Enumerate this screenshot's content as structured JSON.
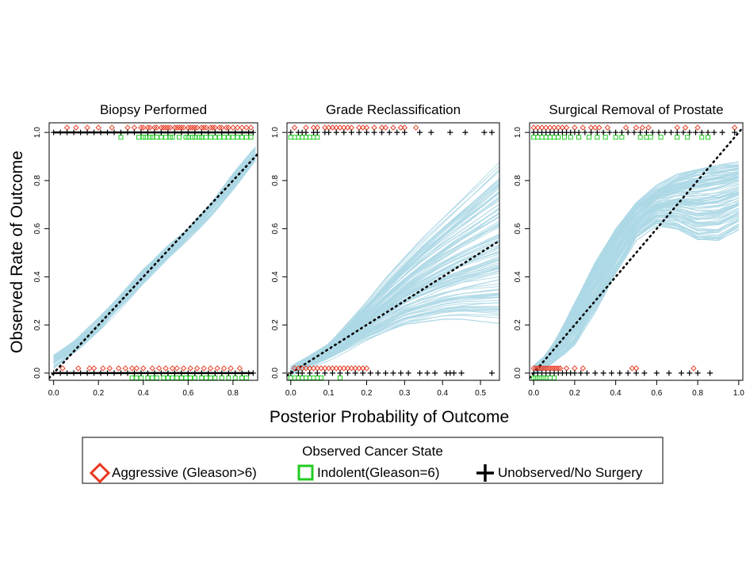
{
  "chart_data": {
    "type": "scatter",
    "figure": {
      "ylabel": "Observed Rate of Outcome",
      "xlabel": "Posterior Probability of Outcome"
    },
    "legend": {
      "title": "Observed Cancer State",
      "placement": "bottom",
      "entries": [
        {
          "name": "Aggressive (Gleason>6)",
          "marker": "diamond",
          "color": "#e8371e"
        },
        {
          "name": "Indolent(Gleason=6)",
          "marker": "square",
          "color": "#22cc22"
        },
        {
          "name": "Unobserved/No Surgery",
          "marker": "plus",
          "color": "#000000"
        }
      ]
    },
    "colors": {
      "band": "#add8e6",
      "aggressive": "#e8371e",
      "indolent": "#22cc22",
      "unobserved": "#000000",
      "reference": "#000000"
    },
    "panels": [
      {
        "title": "Biopsy Performed",
        "xlim": [
          -0.02,
          0.91
        ],
        "ylim": [
          -0.03,
          1.04
        ],
        "xticks": [
          0.0,
          0.2,
          0.4,
          0.6,
          0.8
        ],
        "xtick_labels": [
          "0.0",
          "0.2",
          "0.4",
          "0.6",
          "0.8"
        ],
        "yticks": [
          0.0,
          0.2,
          0.4,
          0.6,
          0.8,
          1.0
        ],
        "ytick_labels": [
          "0.0",
          "0.2",
          "0.4",
          "0.6",
          "0.8",
          "1.0"
        ],
        "band": {
          "x": [
            0.0,
            0.1,
            0.2,
            0.3,
            0.4,
            0.5,
            0.6,
            0.7,
            0.8,
            0.9
          ],
          "lower": [
            0.03,
            0.1,
            0.18,
            0.28,
            0.38,
            0.47,
            0.56,
            0.66,
            0.77,
            0.89
          ],
          "upper": [
            0.07,
            0.13,
            0.22,
            0.32,
            0.43,
            0.52,
            0.6,
            0.7,
            0.82,
            0.93
          ]
        },
        "observed_x": {
          "aggressive_top": [
            0.06,
            0.1,
            0.15,
            0.2,
            0.26,
            0.33,
            0.36,
            0.39,
            0.4,
            0.42,
            0.43,
            0.45,
            0.46,
            0.48,
            0.49,
            0.5,
            0.51,
            0.52,
            0.54,
            0.55,
            0.56,
            0.57,
            0.58,
            0.6,
            0.61,
            0.62,
            0.63,
            0.64,
            0.66,
            0.67,
            0.68,
            0.7,
            0.71,
            0.72,
            0.74,
            0.75,
            0.77,
            0.78,
            0.8,
            0.82,
            0.84,
            0.86,
            0.88
          ],
          "indolent_top": [
            0.3,
            0.38,
            0.4,
            0.41,
            0.43,
            0.44,
            0.46,
            0.48,
            0.5,
            0.52,
            0.53,
            0.56,
            0.59,
            0.6,
            0.62,
            0.63,
            0.65,
            0.66,
            0.68,
            0.7,
            0.72,
            0.74,
            0.76,
            0.78,
            0.8,
            0.82,
            0.84,
            0.86,
            0.88
          ],
          "unobserved_top": [
            0.0,
            0.03,
            0.06,
            0.09,
            0.12,
            0.15,
            0.18,
            0.21,
            0.24,
            0.27,
            0.3,
            0.33,
            0.36,
            0.39,
            0.42,
            0.45,
            0.48,
            0.51,
            0.54,
            0.57,
            0.6,
            0.63,
            0.66,
            0.69,
            0.72,
            0.75,
            0.78,
            0.81,
            0.84,
            0.87,
            0.89
          ],
          "aggressive_bottom": [
            0.04,
            0.11,
            0.16,
            0.18,
            0.22,
            0.25,
            0.29,
            0.32,
            0.35,
            0.37,
            0.4,
            0.44,
            0.47,
            0.5,
            0.53,
            0.55,
            0.58,
            0.61,
            0.64,
            0.67,
            0.7,
            0.73,
            0.76,
            0.79,
            0.83
          ],
          "indolent_bottom": [
            0.35,
            0.37,
            0.39,
            0.42,
            0.44,
            0.46,
            0.49,
            0.51,
            0.53,
            0.55,
            0.57,
            0.59,
            0.61,
            0.63,
            0.66,
            0.68,
            0.7,
            0.72,
            0.75,
            0.78,
            0.81,
            0.84,
            0.86
          ],
          "unobserved_bottom": [
            0.0,
            0.03,
            0.06,
            0.09,
            0.12,
            0.15,
            0.18,
            0.21,
            0.24,
            0.27,
            0.3,
            0.33,
            0.36,
            0.39,
            0.42,
            0.45,
            0.48,
            0.51,
            0.54,
            0.57,
            0.6,
            0.63,
            0.66,
            0.69,
            0.72,
            0.75,
            0.78,
            0.81,
            0.84,
            0.87,
            0.89
          ]
        }
      },
      {
        "title": "Grade Reclassification",
        "xlim": [
          -0.01,
          0.55
        ],
        "ylim": [
          -0.03,
          1.04
        ],
        "xticks": [
          0.0,
          0.1,
          0.2,
          0.3,
          0.4,
          0.5
        ],
        "xtick_labels": [
          "0.0",
          "0.1",
          "0.2",
          "0.3",
          "0.4",
          "0.5"
        ],
        "yticks": [
          0.0,
          0.2,
          0.4,
          0.6,
          0.8,
          1.0
        ],
        "ytick_labels": [
          "0.0",
          "0.2",
          "0.4",
          "0.6",
          "0.8",
          "1.0"
        ],
        "band": {
          "x": [
            0.0,
            0.05,
            0.1,
            0.15,
            0.2,
            0.25,
            0.3,
            0.35,
            0.4,
            0.45,
            0.5,
            0.55
          ],
          "lower": [
            0.0,
            0.03,
            0.06,
            0.1,
            0.14,
            0.17,
            0.2,
            0.21,
            0.22,
            0.22,
            0.21,
            0.2
          ],
          "upper": [
            0.02,
            0.07,
            0.12,
            0.21,
            0.3,
            0.4,
            0.49,
            0.58,
            0.66,
            0.74,
            0.82,
            0.9
          ]
        },
        "observed_x": {
          "aggressive_top": [
            0.01,
            0.04,
            0.06,
            0.07,
            0.09,
            0.1,
            0.11,
            0.12,
            0.13,
            0.14,
            0.15,
            0.16,
            0.18,
            0.19,
            0.2,
            0.22,
            0.24,
            0.25,
            0.27,
            0.29,
            0.3,
            0.33
          ],
          "indolent_top": [
            0.0,
            0.01,
            0.02,
            0.03,
            0.04,
            0.05,
            0.06,
            0.07
          ],
          "unobserved_top": [
            0.0,
            0.02,
            0.03,
            0.04,
            0.06,
            0.07,
            0.09,
            0.1,
            0.12,
            0.14,
            0.16,
            0.18,
            0.2,
            0.22,
            0.24,
            0.26,
            0.28,
            0.3,
            0.34,
            0.37,
            0.42,
            0.46,
            0.51,
            0.53
          ],
          "aggressive_bottom": [
            0.01,
            0.02,
            0.03,
            0.04,
            0.05,
            0.06,
            0.07,
            0.08,
            0.09,
            0.1,
            0.11,
            0.12,
            0.13,
            0.14,
            0.15,
            0.16,
            0.17,
            0.18,
            0.19,
            0.2
          ],
          "indolent_bottom": [
            0.0,
            0.01,
            0.02,
            0.03,
            0.04,
            0.05,
            0.06,
            0.07,
            0.08,
            0.13
          ],
          "unobserved_bottom": [
            0.0,
            0.02,
            0.03,
            0.05,
            0.07,
            0.09,
            0.11,
            0.13,
            0.15,
            0.17,
            0.19,
            0.21,
            0.23,
            0.25,
            0.27,
            0.29,
            0.31,
            0.34,
            0.36,
            0.38,
            0.41,
            0.42,
            0.43,
            0.45,
            0.53
          ]
        }
      },
      {
        "title": "Surgical Removal of Prostate",
        "xlim": [
          -0.02,
          1.02
        ],
        "ylim": [
          -0.03,
          1.04
        ],
        "xticks": [
          0.0,
          0.2,
          0.4,
          0.6,
          0.8,
          1.0
        ],
        "xtick_labels": [
          "0.0",
          "0.2",
          "0.4",
          "0.6",
          "0.8",
          "1.0"
        ],
        "yticks": [
          0.0,
          0.2,
          0.4,
          0.6,
          0.8,
          1.0
        ],
        "ytick_labels": [
          "0.0",
          "0.2",
          "0.4",
          "0.6",
          "0.8",
          "1.0"
        ],
        "band": {
          "x": [
            0.0,
            0.05,
            0.1,
            0.15,
            0.2,
            0.3,
            0.4,
            0.5,
            0.6,
            0.7,
            0.8,
            0.9,
            1.0
          ],
          "lower": [
            0.0,
            0.02,
            0.05,
            0.08,
            0.12,
            0.26,
            0.42,
            0.56,
            0.62,
            0.6,
            0.55,
            0.55,
            0.6
          ],
          "upper": [
            0.02,
            0.06,
            0.12,
            0.2,
            0.29,
            0.46,
            0.6,
            0.7,
            0.77,
            0.82,
            0.85,
            0.87,
            0.88
          ]
        },
        "observed_x": {
          "aggressive_top": [
            0.0,
            0.02,
            0.04,
            0.06,
            0.08,
            0.1,
            0.12,
            0.14,
            0.16,
            0.2,
            0.24,
            0.28,
            0.3,
            0.32,
            0.36,
            0.45,
            0.5,
            0.53,
            0.56,
            0.7,
            0.74,
            0.8,
            0.98
          ],
          "indolent_top": [
            0.0,
            0.02,
            0.04,
            0.06,
            0.08,
            0.1,
            0.12,
            0.15,
            0.18,
            0.22,
            0.27,
            0.31,
            0.35,
            0.4,
            0.43,
            0.52,
            0.55,
            0.57,
            0.62,
            0.7,
            0.75,
            0.82,
            0.85
          ],
          "unobserved_top": [
            0.0,
            0.02,
            0.04,
            0.06,
            0.08,
            0.1,
            0.12,
            0.14,
            0.16,
            0.18,
            0.2,
            0.22,
            0.25,
            0.28,
            0.31,
            0.34,
            0.37,
            0.4,
            0.43,
            0.46,
            0.49,
            0.52,
            0.55,
            0.58,
            0.61,
            0.64,
            0.67,
            0.7,
            0.73,
            0.76,
            0.79,
            0.82,
            0.85,
            0.88,
            0.92,
            0.98
          ],
          "aggressive_bottom": [
            0.0,
            0.01,
            0.02,
            0.03,
            0.04,
            0.05,
            0.06,
            0.07,
            0.08,
            0.09,
            0.1,
            0.11,
            0.12,
            0.13,
            0.16,
            0.2,
            0.24,
            0.48,
            0.5,
            0.78
          ],
          "indolent_bottom": [
            0.0,
            0.01,
            0.02,
            0.03,
            0.04,
            0.05,
            0.06,
            0.08,
            0.1
          ],
          "unobserved_bottom": [
            0.0,
            0.02,
            0.04,
            0.06,
            0.08,
            0.1,
            0.12,
            0.14,
            0.16,
            0.18,
            0.2,
            0.23,
            0.26,
            0.3,
            0.34,
            0.38,
            0.42,
            0.46,
            0.5,
            0.54,
            0.6,
            0.66,
            0.72,
            0.76,
            0.8,
            0.86
          ]
        }
      }
    ]
  }
}
